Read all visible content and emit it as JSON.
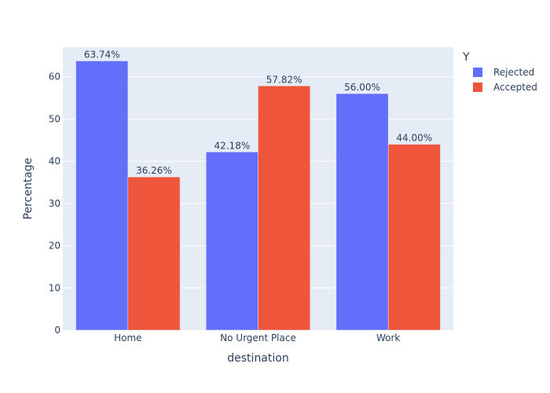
{
  "chart_data": {
    "type": "bar",
    "categories": [
      "Home",
      "No Urgent Place",
      "Work"
    ],
    "series": [
      {
        "name": "Rejected",
        "values": [
          63.74,
          42.18,
          56.0
        ],
        "labels": [
          "63.74%",
          "42.18%",
          "56.00%"
        ],
        "color": "#636efa"
      },
      {
        "name": "Accepted",
        "values": [
          36.26,
          57.82,
          44.0
        ],
        "labels": [
          "36.26%",
          "57.82%",
          "44.00%"
        ],
        "color": "#ef553b"
      }
    ],
    "xlabel": "destination",
    "ylabel": "Percentage",
    "ylim": [
      0,
      67
    ],
    "yticks": [
      0,
      10,
      20,
      30,
      40,
      50,
      60
    ],
    "legend_title": "Y",
    "legend_position": "top-right",
    "grid": true,
    "plot_background": "#e5ecf6"
  }
}
